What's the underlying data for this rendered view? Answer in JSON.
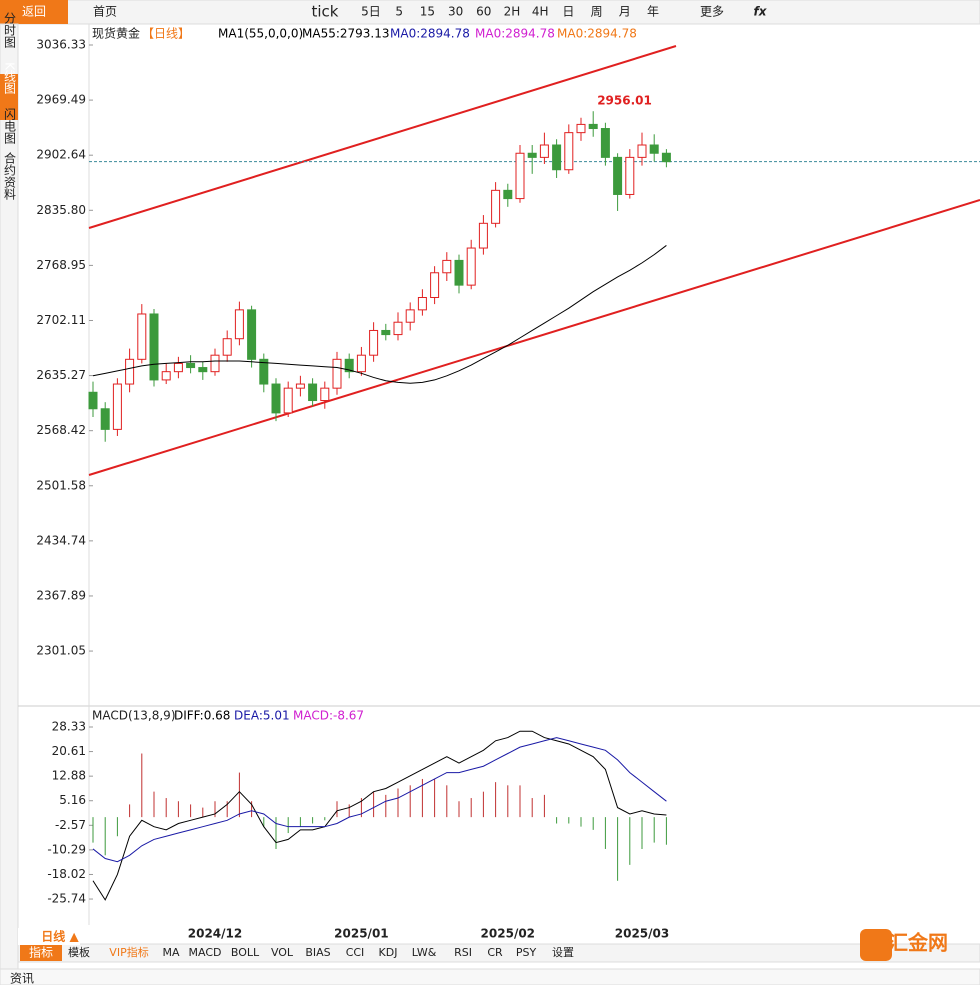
{
  "toolbar": {
    "back": "返回",
    "home": "首页",
    "tick": "tick",
    "periods": [
      "5日",
      "5",
      "15",
      "30",
      "60",
      "2H",
      "4H",
      "日",
      "周",
      "月",
      "年"
    ],
    "more": "更多",
    "fx": "fx"
  },
  "side_tabs": [
    "分时图",
    "K线图",
    "闪电图",
    "合约资料"
  ],
  "chart_data": [
    {
      "type": "candlestick",
      "symbol": "现货黄金",
      "period": "【日线】",
      "indicators": [
        "MA1(55,0,0,0)",
        "MA55:2793.13",
        "MA0:2894.78",
        "MA0:2894.78",
        "MA0:2894.78"
      ],
      "categories": [
        null,
        null,
        null,
        null,
        null,
        null,
        null,
        null,
        null,
        null,
        "2024/12",
        null,
        null,
        null,
        null,
        null,
        null,
        null,
        null,
        null,
        null,
        null,
        "2025/01",
        null,
        null,
        null,
        null,
        null,
        null,
        null,
        null,
        null,
        null,
        null,
        "2025/02",
        null,
        null,
        null,
        null,
        null,
        null,
        null,
        null,
        null,
        null,
        "2025/03",
        null,
        null
      ],
      "open": [
        2615,
        2595,
        2570,
        2625,
        2655,
        2710,
        2630,
        2640,
        2650,
        2645,
        2640,
        2660,
        2680,
        2715,
        2655,
        2625,
        2590,
        2620,
        2625,
        2605,
        2620,
        2655,
        2640,
        2660,
        2690,
        2685,
        2700,
        2715,
        2730,
        2760,
        2775,
        2745,
        2790,
        2820,
        2860,
        2850,
        2905,
        2900,
        2915,
        2885,
        2930,
        2940,
        2935,
        2900,
        2855,
        2900,
        2915,
        2905
      ],
      "high": [
        2628,
        2603,
        2632,
        2668,
        2722,
        2716,
        2650,
        2658,
        2660,
        2652,
        2668,
        2690,
        2725,
        2720,
        2662,
        2632,
        2628,
        2635,
        2632,
        2628,
        2664,
        2662,
        2670,
        2700,
        2698,
        2712,
        2724,
        2740,
        2768,
        2785,
        2782,
        2800,
        2830,
        2870,
        2868,
        2915,
        2915,
        2930,
        2922,
        2940,
        2948,
        2956.01,
        2942,
        2905,
        2910,
        2930,
        2928,
        2910
      ],
      "low": [
        2585,
        2555,
        2562,
        2615,
        2650,
        2622,
        2625,
        2632,
        2638,
        2630,
        2635,
        2652,
        2672,
        2645,
        2615,
        2580,
        2585,
        2610,
        2598,
        2595,
        2612,
        2632,
        2635,
        2652,
        2678,
        2678,
        2690,
        2708,
        2722,
        2750,
        2735,
        2740,
        2782,
        2815,
        2840,
        2845,
        2880,
        2892,
        2875,
        2880,
        2920,
        2925,
        2890,
        2835,
        2850,
        2890,
        2895,
        2888
      ],
      "close": [
        2595,
        2570,
        2625,
        2655,
        2710,
        2630,
        2640,
        2650,
        2645,
        2640,
        2660,
        2680,
        2715,
        2655,
        2625,
        2590,
        2620,
        2625,
        2605,
        2620,
        2655,
        2640,
        2660,
        2690,
        2685,
        2700,
        2715,
        2730,
        2760,
        2775,
        2745,
        2790,
        2820,
        2860,
        2850,
        2905,
        2900,
        2915,
        2885,
        2930,
        2940,
        2935,
        2900,
        2855,
        2900,
        2915,
        2905,
        2894.78
      ],
      "ma55": [
        2635,
        2638,
        2641,
        2644,
        2647,
        2649,
        2650,
        2651,
        2652,
        2652,
        2653,
        2653,
        2653,
        2652,
        2651,
        2650,
        2649,
        2648,
        2647,
        2646,
        2645,
        2642,
        2638,
        2633,
        2629,
        2627,
        2626,
        2627,
        2630,
        2635,
        2641,
        2648,
        2656,
        2664,
        2672,
        2681,
        2690,
        2699,
        2708,
        2717,
        2727,
        2737,
        2746,
        2755,
        2763,
        2772,
        2782,
        2793.13
      ],
      "max_index": 41,
      "up_color": "#e02020",
      "down_color": "#3c9a3c",
      "ma_color": "#000000",
      "ylim": [
        2235.6,
        3060.6
      ],
      "yticks": [
        3036.33,
        2969.49,
        2902.64,
        {
          "value": 2835.8,
          "label": "2835.80"
        },
        2768.95,
        2702.11,
        2635.27,
        2568.42,
        2501.58,
        2434.74,
        2367.89,
        2301.05
      ]
    },
    {
      "type": "macd",
      "title": "MACD(13,8,9)",
      "legend": [
        "DIFF:0.68",
        "DEA:5.01",
        "MACD:-8.67"
      ],
      "diff": [
        -20,
        -26,
        -18,
        -6,
        -1,
        -3,
        -4,
        -2,
        -1,
        0,
        1,
        4,
        8,
        4,
        -3,
        -8,
        -7,
        -4,
        -4,
        -3,
        2,
        3,
        5,
        8,
        9,
        11,
        13,
        15,
        17,
        19,
        17,
        19,
        21,
        24,
        25,
        27,
        27,
        25,
        24,
        23,
        21,
        19,
        15,
        3,
        1,
        2,
        1,
        0.68
      ],
      "dea": [
        -10,
        -13,
        -14,
        -12,
        -9,
        -7,
        -6,
        -5,
        -4,
        -3,
        -2,
        -1,
        1,
        2,
        1,
        -2,
        -3,
        -3,
        -3,
        -3,
        -2,
        0,
        1,
        3,
        5,
        6,
        8,
        10,
        12,
        14,
        14,
        15,
        16,
        18,
        20,
        22,
        23,
        24,
        25,
        24,
        23,
        22,
        21,
        18,
        14,
        11,
        8,
        5.01
      ],
      "macd": [
        -8,
        -12,
        -6,
        4,
        20,
        8,
        6,
        5,
        4,
        3,
        5,
        5,
        14,
        5,
        -3,
        -10,
        -5,
        -3,
        -2,
        -1,
        5,
        4,
        6,
        8,
        7,
        9,
        10,
        12,
        12,
        10,
        5,
        6,
        8,
        11,
        10,
        10,
        6,
        7,
        -2,
        -2,
        -3,
        -4,
        -10,
        -20,
        -15,
        -10,
        -8,
        -8.67
      ],
      "colors": {
        "diff": "#000000",
        "dea": "#1a1aa6",
        "up": "#c03030",
        "down": "#3c9a3c"
      },
      "ylim": [
        -33.9,
        34.3
      ],
      "yticks": [
        28.33,
        20.61,
        12.88,
        5.16,
        -2.57,
        -10.29,
        -18.02,
        -25.74
      ]
    }
  ],
  "bottom_tabs": {
    "period": "日线 ▲",
    "active": "指标",
    "items": [
      "模板",
      "VIP指标",
      "MA",
      "MACD",
      "BOLL",
      "VOL",
      "BIAS",
      "CCI",
      "KDJ",
      "LW&",
      "RSI",
      "CR",
      "PSY",
      "设置"
    ]
  },
  "footer": {
    "news": "资讯",
    "logo": "汇金网"
  }
}
